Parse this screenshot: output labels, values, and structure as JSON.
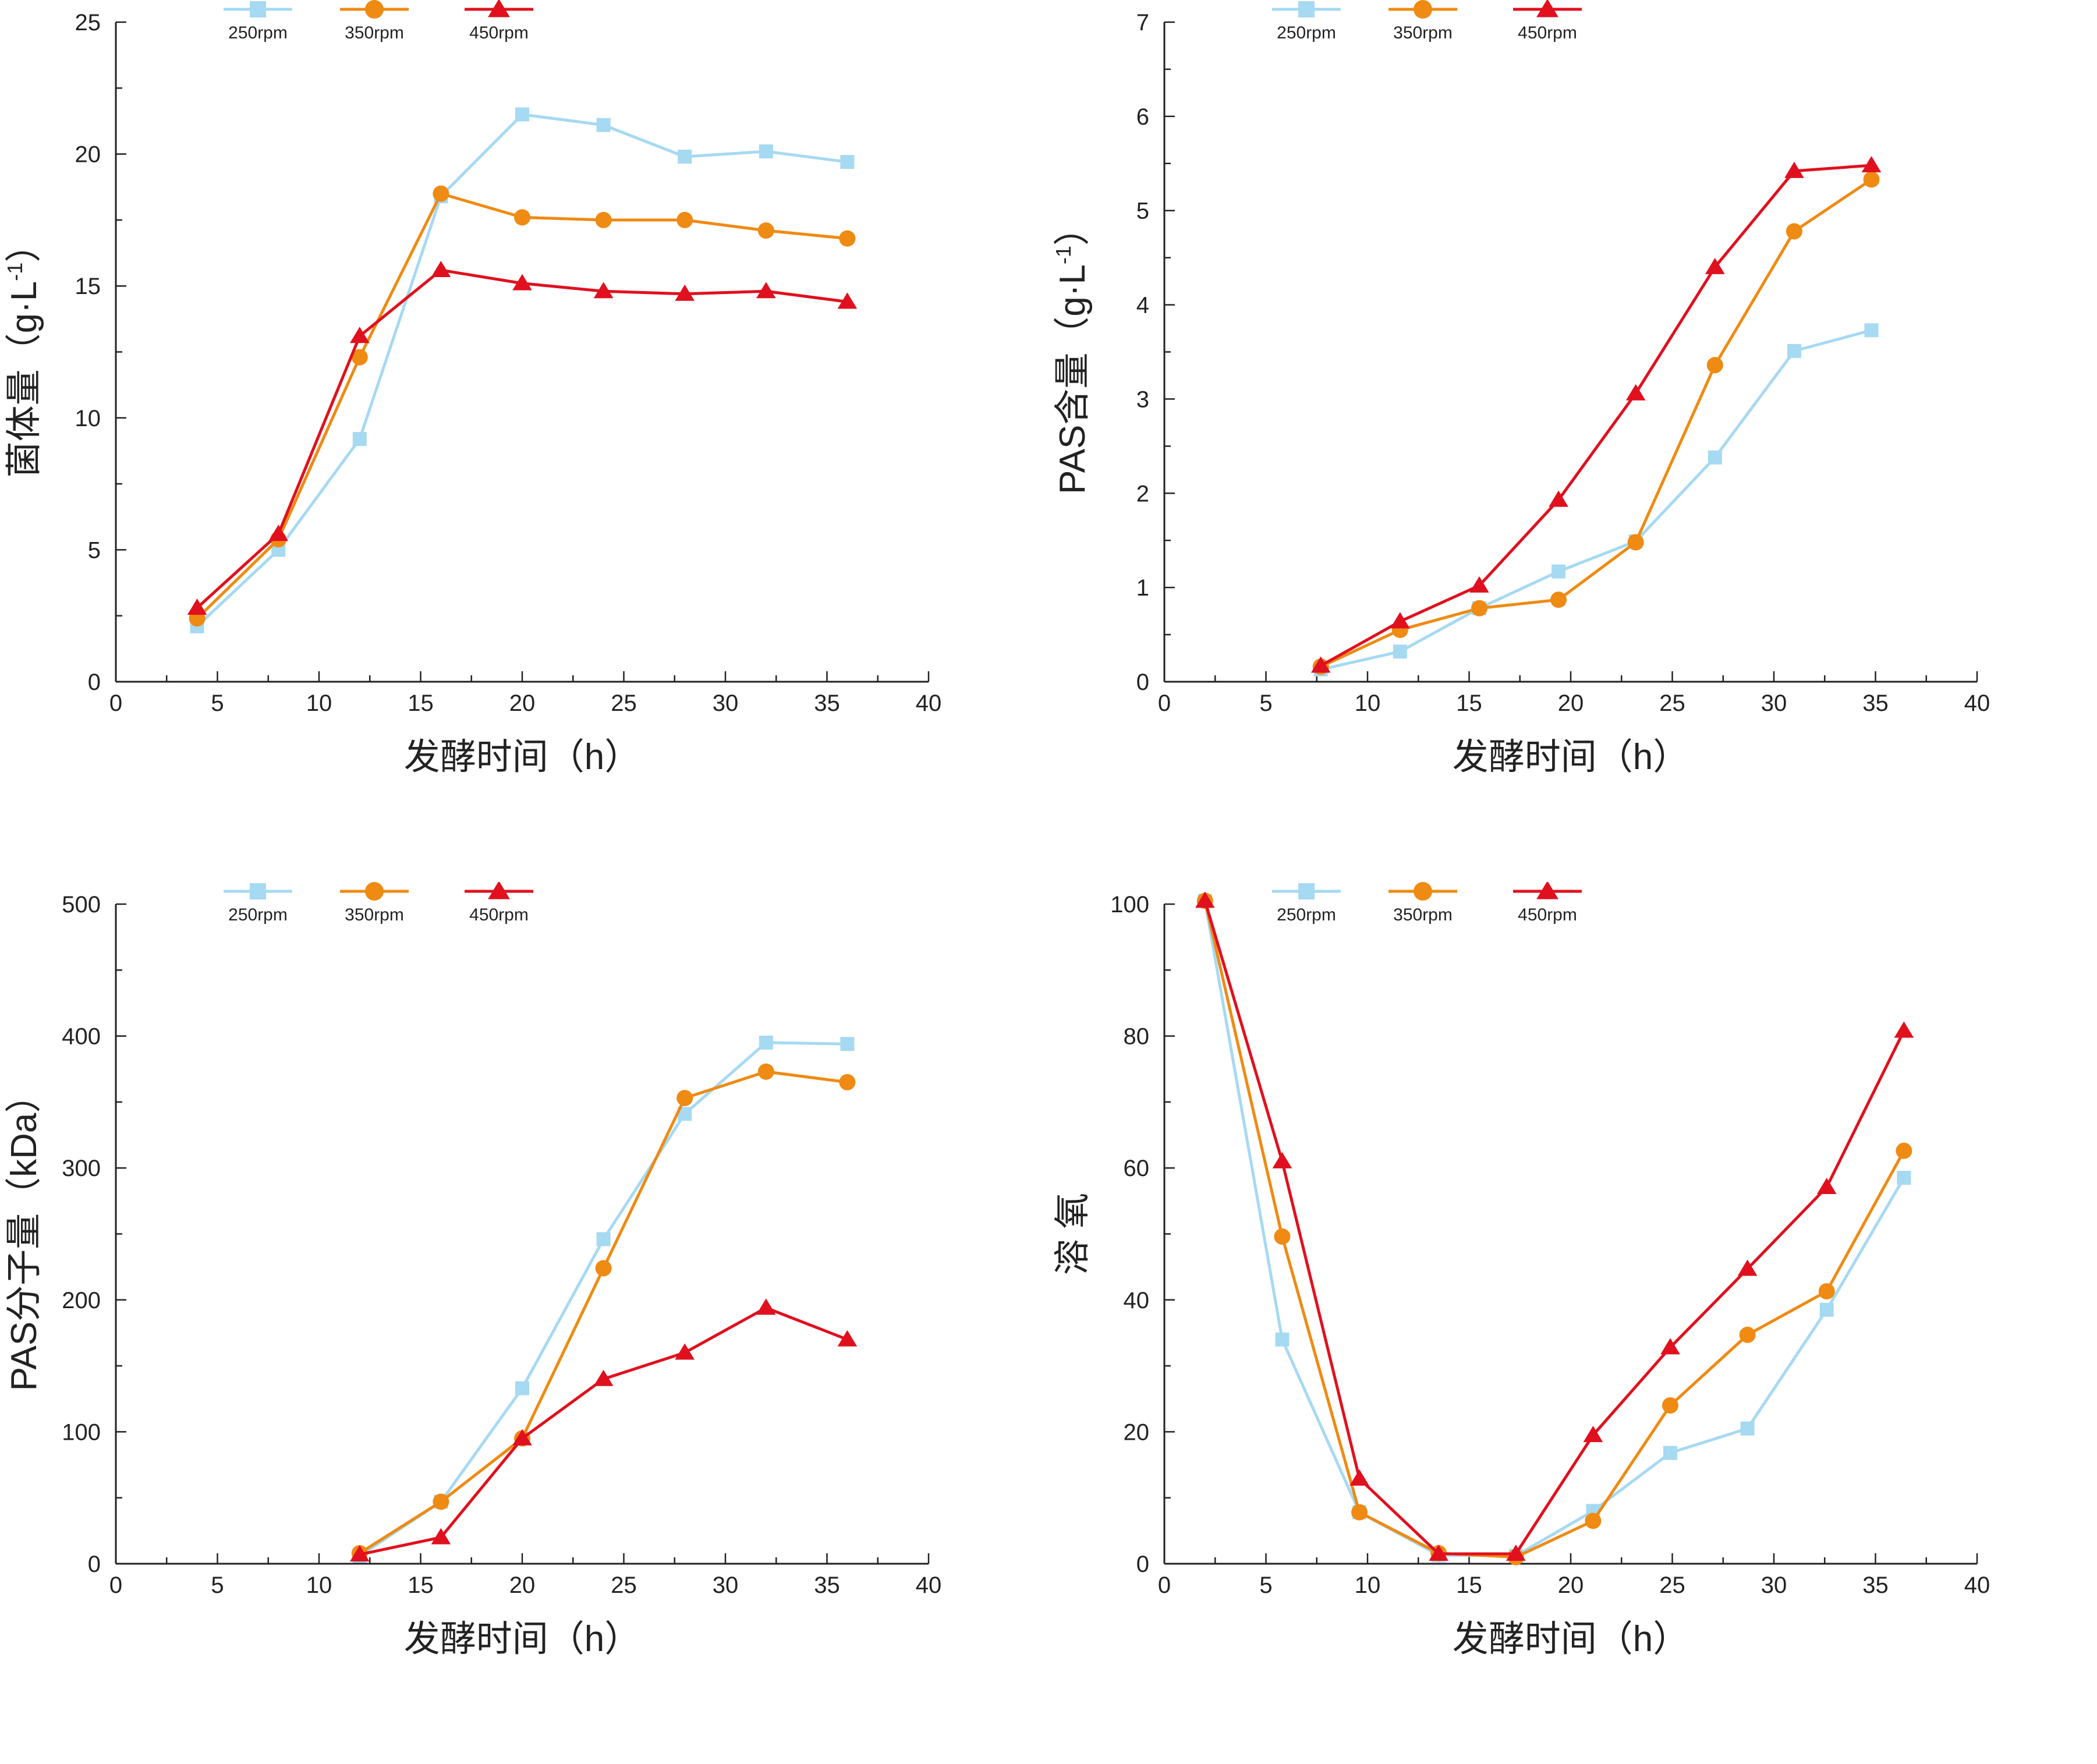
{
  "colors": {
    "250rpm": "#a6d9f2",
    "350rpm": "#ef8a12",
    "450rpm": "#e0101e",
    "axis": "#222222"
  },
  "legend": [
    {
      "label": "250rpm",
      "marker": "square"
    },
    {
      "label": "350rpm",
      "marker": "circle"
    },
    {
      "label": "450rpm",
      "marker": "triangle"
    }
  ],
  "chart_data": [
    {
      "type": "line",
      "id": "biomass",
      "title": "",
      "xlabel": "发酵时间（h）",
      "ylabel": "菌体量（g·L",
      "ylabel_sup": "-1",
      "ylabel_close": "）",
      "xlim": [
        0,
        40
      ],
      "ylim": [
        0,
        25
      ],
      "xticks": [
        0,
        5,
        10,
        15,
        20,
        25,
        30,
        35,
        40
      ],
      "yticks": [
        0,
        5,
        10,
        15,
        20,
        25
      ],
      "series": [
        {
          "name": "250rpm",
          "x": [
            4,
            8,
            12,
            16,
            20,
            24,
            28,
            32,
            36
          ],
          "y": [
            2.1,
            5.0,
            9.2,
            18.4,
            21.5,
            21.1,
            19.9,
            20.1,
            19.7
          ]
        },
        {
          "name": "350rpm",
          "x": [
            4,
            8,
            12,
            16,
            20,
            24,
            28,
            32,
            36
          ],
          "y": [
            2.4,
            5.4,
            12.3,
            18.5,
            17.6,
            17.5,
            17.5,
            17.1,
            16.8
          ]
        },
        {
          "name": "450rpm",
          "x": [
            4,
            8,
            12,
            16,
            20,
            24,
            28,
            32,
            36
          ],
          "y": [
            2.8,
            5.6,
            13.1,
            15.6,
            15.1,
            14.8,
            14.7,
            14.8,
            14.4
          ]
        }
      ]
    },
    {
      "type": "line",
      "id": "pas-content",
      "title": "",
      "xlabel": "发酵时间（h）",
      "ylabel": "PAS含量（g·L",
      "ylabel_sup": "-1",
      "ylabel_close": "）",
      "xlim": [
        0,
        40
      ],
      "ylim": [
        0,
        7
      ],
      "xticks": [
        0,
        5,
        10,
        15,
        20,
        25,
        30,
        35,
        40
      ],
      "yticks": [
        0,
        1,
        2,
        3,
        4,
        5,
        6,
        7
      ],
      "series": [
        {
          "name": "250rpm",
          "x": [
            7.7,
            11.6,
            15.5,
            19.4,
            23.2,
            27.1,
            31.0,
            34.8
          ],
          "y": [
            0.13,
            0.32,
            0.78,
            1.17,
            1.49,
            2.38,
            3.51,
            3.73
          ]
        },
        {
          "name": "350rpm",
          "x": [
            7.7,
            11.6,
            15.5,
            19.4,
            23.2,
            27.1,
            31.0,
            34.8
          ],
          "y": [
            0.16,
            0.55,
            0.78,
            0.87,
            1.48,
            3.36,
            4.78,
            5.33
          ]
        },
        {
          "name": "450rpm",
          "x": [
            7.7,
            11.6,
            15.5,
            19.4,
            23.2,
            27.1,
            31.0,
            34.8
          ],
          "y": [
            0.17,
            0.64,
            1.02,
            1.93,
            3.06,
            4.4,
            5.42,
            5.48
          ]
        }
      ]
    },
    {
      "type": "line",
      "id": "pas-mw",
      "title": "",
      "xlabel": "发酵时间（h）",
      "ylabel": "PAS分子量（kDa）",
      "ylabel_sup": "",
      "ylabel_close": "",
      "xlim": [
        0,
        40
      ],
      "ylim": [
        0,
        500
      ],
      "xticks": [
        0,
        5,
        10,
        15,
        20,
        25,
        30,
        35,
        40
      ],
      "yticks": [
        0,
        100,
        200,
        300,
        400,
        500
      ],
      "series": [
        {
          "name": "250rpm",
          "x": [
            12,
            16,
            20,
            24,
            28,
            32,
            36
          ],
          "y": [
            6,
            47,
            133,
            246,
            341,
            395,
            394
          ]
        },
        {
          "name": "350rpm",
          "x": [
            12,
            16,
            20,
            24,
            28,
            32,
            36
          ],
          "y": [
            8,
            47,
            95,
            224,
            353,
            373,
            365
          ]
        },
        {
          "name": "450rpm",
          "x": [
            12,
            16,
            20,
            24,
            28,
            32,
            36
          ],
          "y": [
            7,
            20,
            95,
            140,
            160,
            194,
            170
          ]
        }
      ]
    },
    {
      "type": "line",
      "id": "dissolved-oxygen",
      "title": "",
      "xlabel": "发酵时间（h）",
      "ylabel": "溶 氧",
      "ylabel_sup": "",
      "ylabel_close": "",
      "xlim": [
        0,
        40
      ],
      "ylim": [
        0,
        100
      ],
      "xticks": [
        0,
        5,
        10,
        15,
        20,
        25,
        30,
        35,
        40
      ],
      "yticks": [
        0,
        20,
        40,
        60,
        80,
        100
      ],
      "series": [
        {
          "name": "250rpm",
          "x": [
            2.0,
            5.8,
            9.6,
            13.5,
            17.3,
            21.1,
            24.9,
            28.7,
            32.6,
            36.4
          ],
          "y": [
            100.5,
            34.0,
            7.8,
            1.3,
            1.2,
            8.0,
            16.8,
            20.5,
            38.5,
            58.5
          ]
        },
        {
          "name": "350rpm",
          "x": [
            2.0,
            5.8,
            9.6,
            13.5,
            17.3,
            21.1,
            24.9,
            28.7,
            32.6,
            36.4
          ],
          "y": [
            100.5,
            49.6,
            7.8,
            1.6,
            1.0,
            6.5,
            24.0,
            34.7,
            41.3,
            62.6
          ]
        },
        {
          "name": "450rpm",
          "x": [
            2.0,
            5.8,
            9.6,
            13.5,
            17.3,
            21.1,
            24.9,
            28.7,
            32.6,
            36.4
          ],
          "y": [
            100.5,
            61.0,
            12.9,
            1.5,
            1.5,
            19.5,
            32.8,
            44.7,
            57.1,
            80.8
          ]
        }
      ]
    }
  ]
}
